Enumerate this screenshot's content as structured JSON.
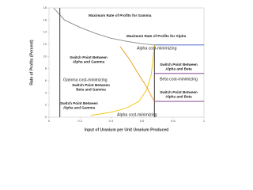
{
  "chart_data": {
    "type": "line",
    "x_label": "Input of Uranium per Unit Uranium Produced",
    "y_label": "Rate of Profits (Percent)",
    "xlim": [
      0,
      1
    ],
    "xticks": [
      0,
      0.2,
      0.4,
      0.6,
      0.8,
      1
    ],
    "ylim": [
      0,
      18
    ],
    "yticks": [
      0,
      2,
      4,
      6,
      8,
      10,
      12,
      14,
      16,
      18
    ],
    "series": [
      {
        "color": "#888888",
        "x": [
          0.03,
          0.1,
          0.2,
          0.3,
          0.4,
          0.5,
          0.6,
          0.68
        ],
        "values": [
          18,
          16,
          14.8,
          13.8,
          13,
          12.5,
          12.1,
          11.9
        ]
      },
      {
        "color": "#222222",
        "x": [
          0.07,
          0.07
        ],
        "values": [
          0,
          18
        ]
      },
      {
        "color": "#222222",
        "x": [
          0.68,
          0.68
        ],
        "values": [
          0,
          11.9
        ]
      },
      {
        "color": "#3a4fc4",
        "x": [
          0.68,
          1
        ],
        "values": [
          11.9,
          11.9
        ]
      },
      {
        "color": "#7a2f8f",
        "x": [
          0.68,
          1
        ],
        "values": [
          7.2,
          7.2
        ]
      },
      {
        "color": "#7a2f8f",
        "x": [
          0.68,
          1
        ],
        "values": [
          2.6,
          2.6
        ]
      },
      {
        "color": "#f2c200",
        "x": [
          0.27,
          0.4,
          0.5,
          0.58,
          0.63,
          0.66,
          0.68
        ],
        "values": [
          0.3,
          0.8,
          1.5,
          2.6,
          4.5,
          7,
          11.9
        ]
      },
      {
        "color": "#e89a10",
        "x": [
          0.46,
          0.52,
          0.58,
          0.63,
          0.66,
          0.68
        ],
        "values": [
          11.6,
          9.5,
          7,
          5,
          3.5,
          2.6
        ]
      }
    ],
    "annotations": [
      {
        "lines": [
          "Maximum Rate of Profits for Gamma"
        ]
      },
      {
        "lines": [
          "Maximum Rate of Profits for Alpha"
        ]
      },
      {
        "lines": [
          "Alpha cost-minimizing"
        ]
      },
      {
        "lines": [
          "Switch Point Between",
          "Alpha and Gamma"
        ]
      },
      {
        "lines": [
          "Gamma cost-minimizing"
        ]
      },
      {
        "lines": [
          "Switch Point Between",
          "Alpha and Beta"
        ]
      },
      {
        "lines": [
          "Beta cost-minimizing"
        ]
      },
      {
        "lines": [
          "Switch Point Between",
          "Beta and Gamma"
        ]
      },
      {
        "lines": [
          "Switch Point Between",
          "Alpha and Beta"
        ]
      },
      {
        "lines": [
          "Switch Point Between",
          "Alpha and Gamma"
        ]
      },
      {
        "lines": [
          "Alpha cost-minimizing"
        ]
      }
    ]
  }
}
